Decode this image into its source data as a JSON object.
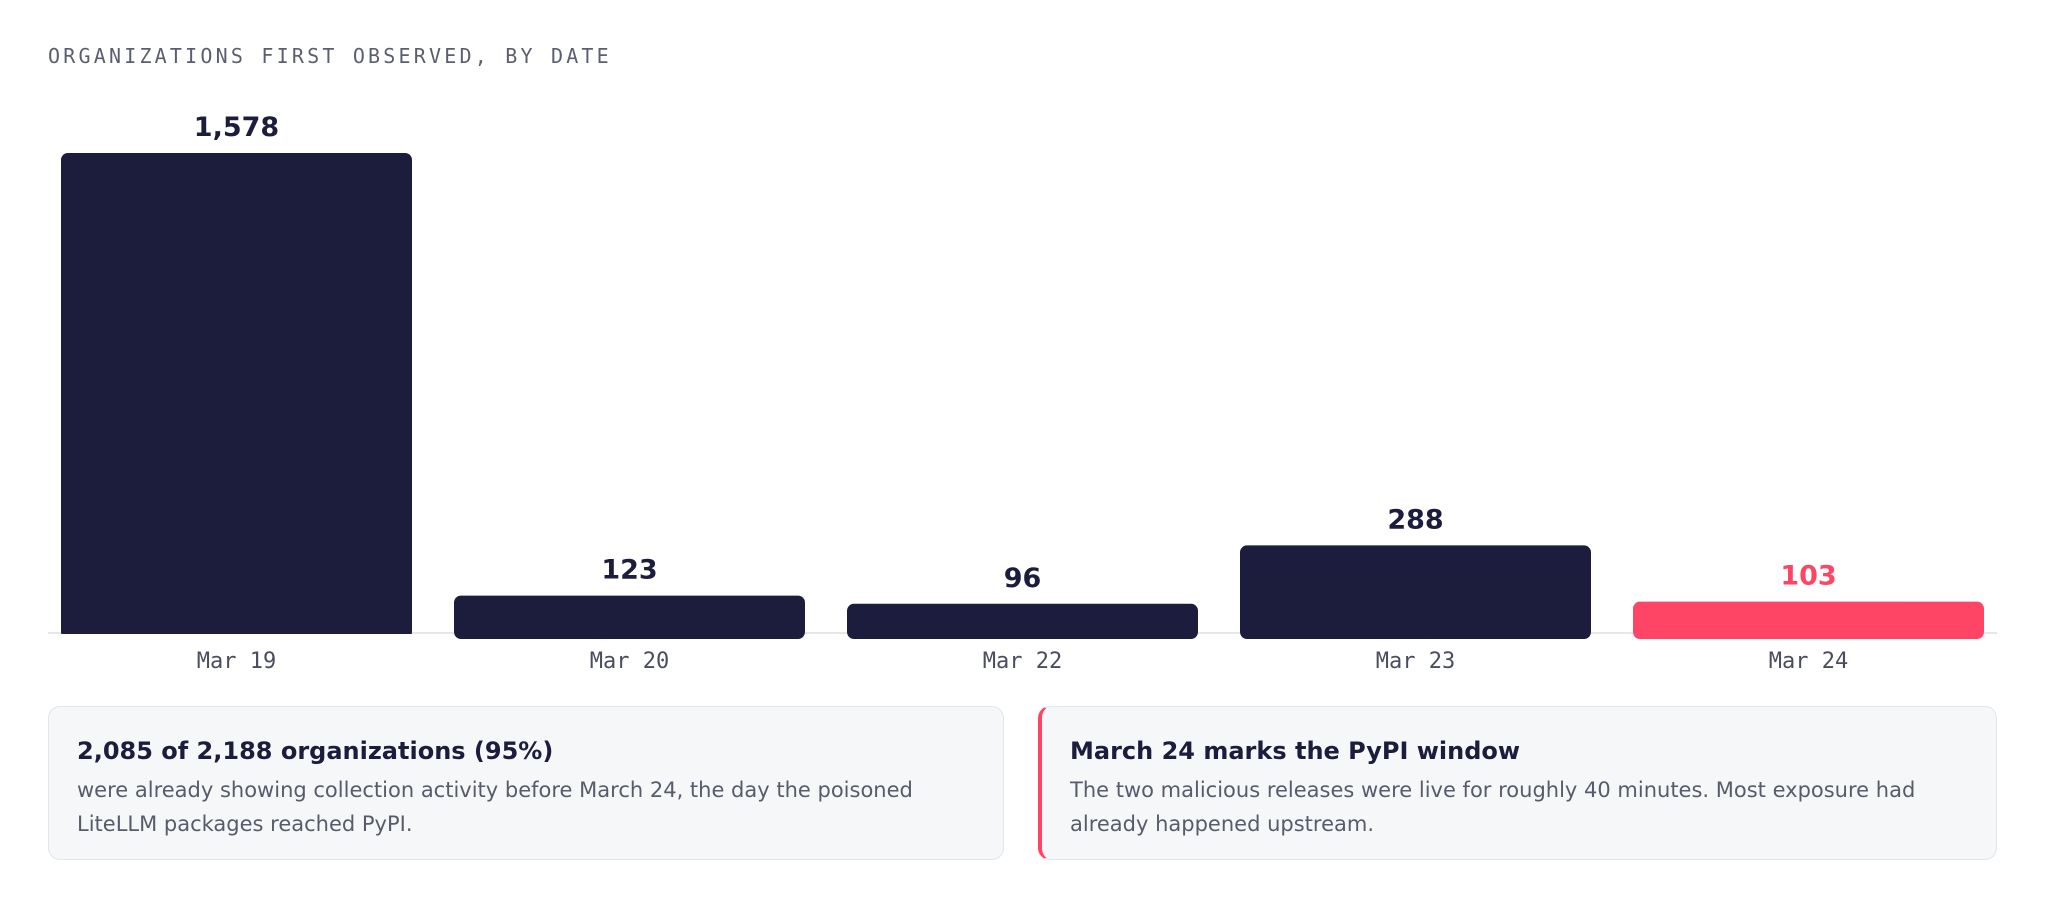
{
  "chart_data": {
    "type": "bar",
    "title": "ORGANIZATIONS FIRST OBSERVED, BY DATE",
    "categories": [
      "Mar 19",
      "Mar 20",
      "Mar 22",
      "Mar 23",
      "Mar 24"
    ],
    "values": [
      1578,
      123,
      96,
      288,
      103
    ],
    "value_labels": [
      "1,578",
      "123",
      "96",
      "288",
      "103"
    ],
    "highlight_index": 4,
    "ylim": [
      0,
      1578
    ],
    "grid": false,
    "xlabel": "",
    "ylabel": ""
  },
  "colors": {
    "bar": "#1c1c3c",
    "highlight": "#ff4566",
    "label": "#1c1c3c"
  },
  "cards": {
    "left": {
      "heading": "2,085 of 2,188 organizations (95%)",
      "body": "were already showing collection activity before March 24, the day the poisoned LiteLLM packages reached PyPI."
    },
    "right": {
      "heading": "March 24 marks the PyPI window",
      "body": "The two malicious releases were live for roughly 40 minutes. Most exposure had already happened upstream."
    }
  }
}
